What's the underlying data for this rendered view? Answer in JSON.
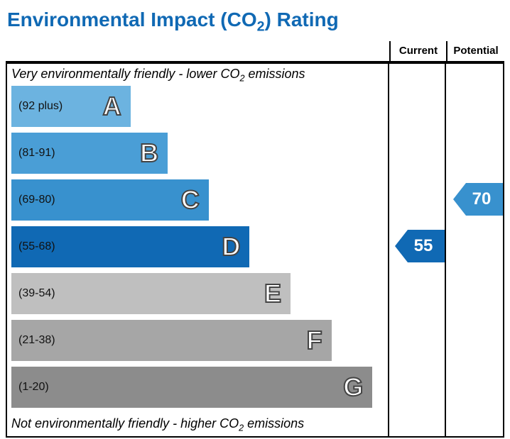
{
  "title_prefix": "Environmental Impact (CO",
  "title_sub": "2",
  "title_suffix": ") Rating",
  "headers": {
    "current": "Current",
    "potential": "Potential"
  },
  "top_caption_prefix": "Very environmentally friendly - lower CO",
  "top_caption_sub": "2",
  "top_caption_suffix": " emissions",
  "bottom_caption_prefix": "Not environmentally friendly - higher CO",
  "bottom_caption_sub": "2",
  "bottom_caption_suffix": " emissions",
  "bands": [
    {
      "letter": "A",
      "range": "(92 plus)",
      "width_pct": 32,
      "color": "#6cb3e0"
    },
    {
      "letter": "B",
      "range": "(81-91)",
      "width_pct": 42,
      "color": "#4a9ed6"
    },
    {
      "letter": "C",
      "range": "(69-80)",
      "width_pct": 53,
      "color": "#3891ce"
    },
    {
      "letter": "D",
      "range": "(55-68)",
      "width_pct": 64,
      "color": "#1069b4"
    },
    {
      "letter": "E",
      "range": "(39-54)",
      "width_pct": 75,
      "color": "#bfbfbf"
    },
    {
      "letter": "F",
      "range": "(21-38)",
      "width_pct": 86,
      "color": "#a6a6a6"
    },
    {
      "letter": "G",
      "range": "(1-20)",
      "width_pct": 97,
      "color": "#8c8c8c"
    }
  ],
  "current": {
    "value": "55",
    "band_letter": "D",
    "color": "#1069b4"
  },
  "potential": {
    "value": "70",
    "band_letter": "C",
    "color": "#3891ce"
  },
  "layout": {
    "band_height": 58,
    "band_gap": 8,
    "caption_height": 30
  }
}
